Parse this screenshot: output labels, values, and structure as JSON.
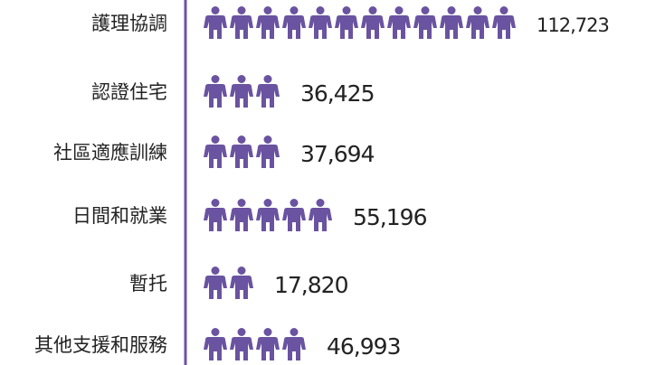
{
  "chart_data": {
    "type": "pictogram",
    "categories": [
      "護理協調",
      "認證住宅",
      "社區適應訓練",
      "日間和就業",
      "暫托",
      "其他支援和服務"
    ],
    "values": [
      112723,
      36425,
      37694,
      55196,
      17820,
      46993
    ],
    "value_labels": [
      "112,723",
      "36,425",
      "37,694",
      "55,196",
      "17,820",
      "46,993"
    ],
    "icons": [
      12,
      3,
      3,
      5,
      2,
      4
    ],
    "color": "#6a53a0"
  }
}
